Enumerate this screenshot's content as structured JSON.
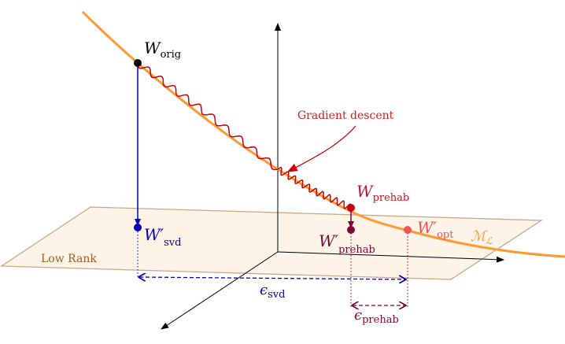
{
  "labels": {
    "w_orig": {
      "main": "W",
      "sub": "orig"
    },
    "w_prehab": {
      "main": "W",
      "sub": "prehab"
    },
    "w_prehab_prime": {
      "main": "W′",
      "sub": "prehab"
    },
    "w_opt_prime": {
      "main": "W′",
      "sub": "opt"
    },
    "w_svd_prime": {
      "main": "W′",
      "sub": "svd"
    },
    "eps_svd": {
      "main": "ϵ",
      "sub": "svd"
    },
    "eps_prehab": {
      "main": "ϵ",
      "sub": "prehab"
    },
    "manifold": {
      "main": "ℳ",
      "sub": "ℒ"
    },
    "gradient_descent": "Gradient descent",
    "low_rank": "Low Rank"
  },
  "colors": {
    "manifold": "#ff9933",
    "gradient_path": "#cc0000",
    "svd": "#0000bb",
    "prehab": "#7a0a35",
    "w_prehab": "#c00010",
    "w_opt": "#f05555",
    "plane_fill": "#fdf3e7",
    "plane_stroke": "#c8a888",
    "low_rank_text": "#a0602a"
  }
}
